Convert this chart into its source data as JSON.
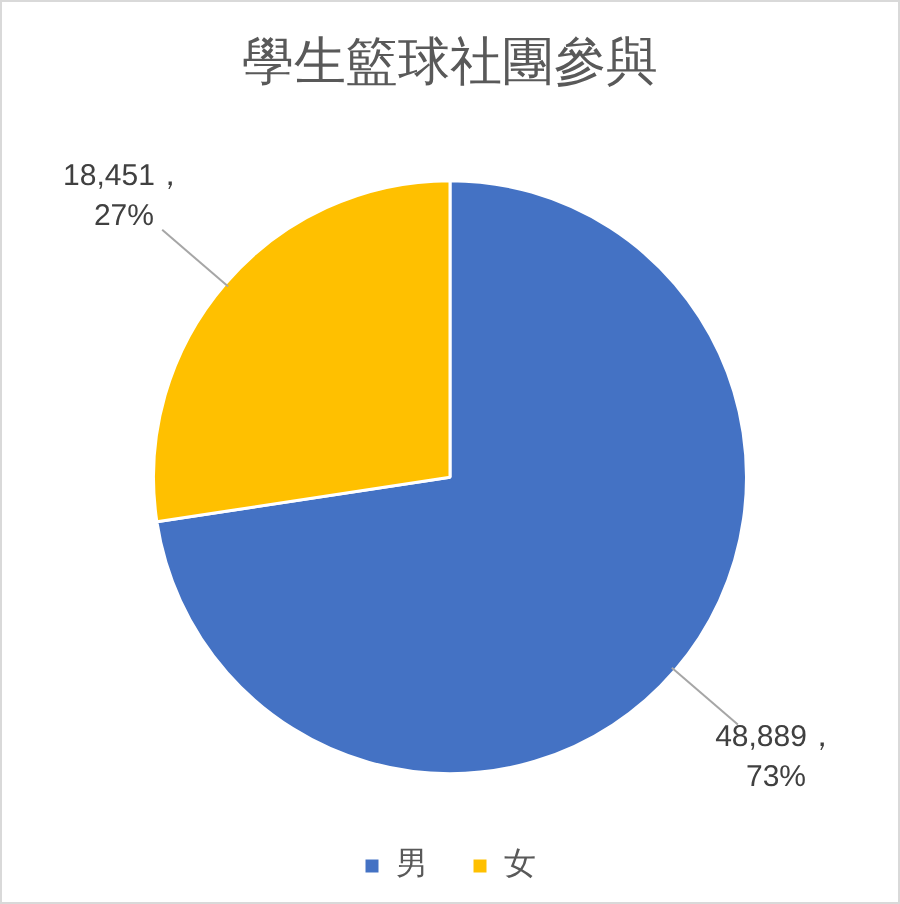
{
  "chart_data": {
    "type": "pie",
    "title": "學生籃球社團參與",
    "categories": [
      "男",
      "女"
    ],
    "values": [
      48889,
      18451
    ],
    "colors": [
      "#4472c4",
      "#ffc000"
    ],
    "value_labels": [
      "48,889，\n73%",
      "18,451，\n27%"
    ],
    "legend": "bottom"
  }
}
